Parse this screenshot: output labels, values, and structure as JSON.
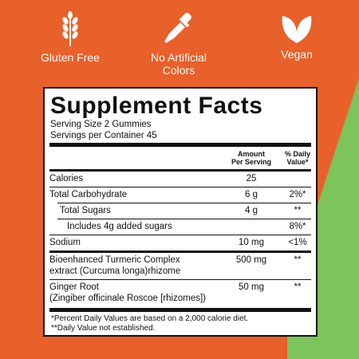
{
  "badges": [
    {
      "icon": "wheat-icon",
      "label_lines": [
        "Gluten Free"
      ]
    },
    {
      "icon": "dropper-icon",
      "label_lines": [
        "No Artificial",
        "Colors"
      ]
    },
    {
      "icon": "leaf-icon",
      "label_lines": [
        "Vegan"
      ]
    }
  ],
  "facts": {
    "title": "Supplement Facts",
    "serving_size": "Serving Size 2 Gummies",
    "servings_per_container": "Servings per Container 45",
    "header_amount_lines": [
      "Amount",
      "Per Serving"
    ],
    "header_dv_lines": [
      "% Daily",
      "Value*"
    ],
    "rows": [
      {
        "name": "Calories",
        "amount": "25",
        "dv": ""
      },
      {
        "name": "Total Carbohydrate",
        "amount": "6 g",
        "dv": "2%*"
      },
      {
        "name": "Total Sugars",
        "amount": "4 g",
        "dv": "**"
      },
      {
        "name": "Includes 4g added sugars",
        "amount": "",
        "dv": "8%*"
      },
      {
        "name": "Sodium",
        "amount": "10 mg",
        "dv": "<1%"
      },
      {
        "name_lines": [
          "Bioenhanced Turmeric Complex",
          "extract (Curcuma longa)rhizome"
        ],
        "amount": "500 mg",
        "dv": "**"
      },
      {
        "name_lines": [
          "Ginger Root",
          "(Zingiber officinale Roscoe [rhizomes])"
        ],
        "amount": "50 mg",
        "dv": "**"
      }
    ],
    "footnotes": [
      "*Percent Daily Values are based on a 2,000 calorie diet.",
      "**Daily Value not established."
    ]
  },
  "colors": {
    "background": "#e8602a",
    "accent_green": "#7dc45a",
    "panel": "#ffffff",
    "ink": "#111111"
  }
}
